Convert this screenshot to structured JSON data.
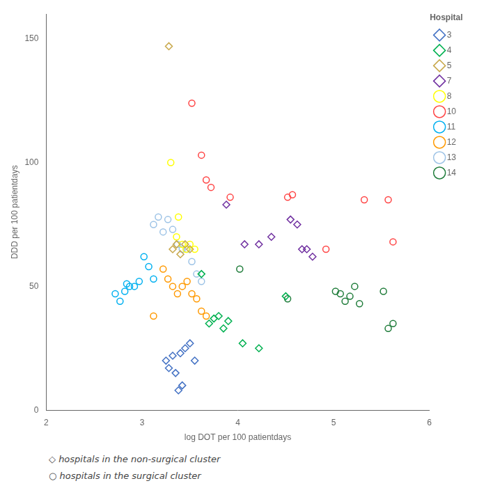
{
  "chart_data": {
    "type": "scatter",
    "xlabel": "log DOT per 100 patientdays",
    "ylabel": "DDD per 100 patientdays",
    "xlim": [
      2,
      6
    ],
    "ylim": [
      0,
      160
    ],
    "xticks": [
      2,
      3,
      4,
      5,
      6
    ],
    "yticks": [
      0,
      50,
      100,
      150
    ],
    "grid": false,
    "legend": "right",
    "legend_title": "Hospital",
    "series": [
      {
        "name": "3",
        "color": "#4472C4",
        "marker": "diamond",
        "x": [
          3.25,
          3.28,
          3.32,
          3.35,
          3.4,
          3.45,
          3.5,
          3.38,
          3.42,
          3.55
        ],
        "values": [
          20,
          17,
          22,
          15,
          23,
          25,
          27,
          8,
          10,
          20
        ]
      },
      {
        "name": "4",
        "color": "#00B050",
        "marker": "diamond",
        "x": [
          3.62,
          3.7,
          3.75,
          3.8,
          3.85,
          3.9,
          4.05,
          4.22,
          4.5
        ],
        "values": [
          55,
          35,
          37,
          38,
          33,
          36,
          27,
          25,
          46
        ]
      },
      {
        "name": "5",
        "color": "#C8A84B",
        "marker": "diamond",
        "x": [
          3.28,
          3.32,
          3.36,
          3.4,
          3.45,
          3.5
        ],
        "values": [
          147,
          65,
          67,
          63,
          67,
          65
        ]
      },
      {
        "name": "7",
        "color": "#7030A0",
        "marker": "diamond",
        "x": [
          3.88,
          4.07,
          4.22,
          4.35,
          4.55,
          4.62,
          4.67,
          4.72,
          4.78
        ],
        "values": [
          83,
          67,
          67,
          70,
          77,
          75,
          65,
          65,
          62
        ]
      },
      {
        "name": "8",
        "color": "#FFFF00",
        "marker": "circle",
        "x": [
          3.3,
          3.36,
          3.38,
          3.42,
          3.46,
          3.5,
          3.55
        ],
        "values": [
          100,
          70,
          78,
          67,
          65,
          67,
          65
        ]
      },
      {
        "name": "10",
        "color": "#FF4444",
        "marker": "circle",
        "x": [
          3.52,
          3.62,
          3.67,
          3.72,
          3.92,
          4.52,
          4.57,
          4.92,
          5.32,
          5.57,
          5.62
        ],
        "values": [
          124,
          103,
          93,
          90,
          86,
          86,
          87,
          65,
          85,
          85,
          68
        ]
      },
      {
        "name": "11",
        "color": "#00B0F0",
        "marker": "circle",
        "x": [
          2.72,
          2.77,
          2.82,
          2.84,
          2.87,
          2.92,
          2.97,
          3.02,
          3.07,
          3.12
        ],
        "values": [
          47,
          44,
          48,
          51,
          50,
          50,
          52,
          62,
          58,
          53
        ]
      },
      {
        "name": "12",
        "color": "#FF9900",
        "marker": "circle",
        "x": [
          3.12,
          3.22,
          3.27,
          3.32,
          3.37,
          3.42,
          3.47,
          3.52,
          3.57,
          3.62,
          3.67
        ],
        "values": [
          38,
          57,
          53,
          50,
          47,
          50,
          52,
          47,
          45,
          40,
          38
        ]
      },
      {
        "name": "13",
        "color": "#9DC3E6",
        "marker": "circle",
        "x": [
          3.12,
          3.17,
          3.22,
          3.27,
          3.32,
          3.37,
          3.42,
          3.47,
          3.52,
          3.57,
          3.62
        ],
        "values": [
          75,
          78,
          72,
          77,
          73,
          67,
          65,
          65,
          60,
          55,
          52
        ]
      },
      {
        "name": "14",
        "color": "#1F7C3A",
        "marker": "circle",
        "x": [
          4.02,
          4.52,
          5.02,
          5.07,
          5.12,
          5.17,
          5.22,
          5.27,
          5.52,
          5.57,
          5.62
        ],
        "values": [
          57,
          45,
          48,
          47,
          44,
          46,
          50,
          43,
          48,
          33,
          35
        ]
      }
    ],
    "annotations": [
      "◇ hospitals in the non-surgical cluster",
      "○ hospitals in the surgical cluster"
    ]
  }
}
